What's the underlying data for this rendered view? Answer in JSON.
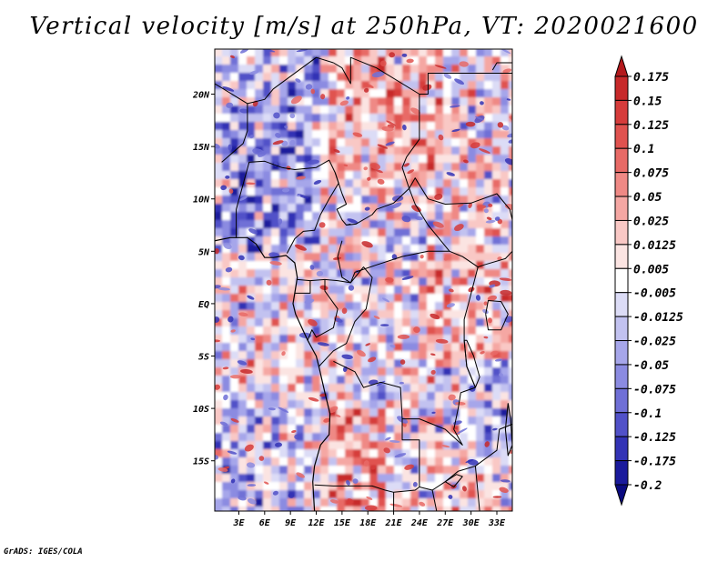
{
  "title": "Vertical velocity [m/s] at 250hPa, VT: 2020021600",
  "credit": "GrADS: IGES/COLA",
  "map": {
    "lat_labels": [
      "20N",
      "15N",
      "10N",
      "5N",
      "EQ",
      "5S",
      "10S",
      "15S"
    ],
    "lat_values": [
      20,
      15,
      10,
      5,
      0,
      -5,
      -10,
      -15
    ],
    "lon_labels": [
      "3E",
      "6E",
      "9E",
      "12E",
      "15E",
      "18E",
      "21E",
      "24E",
      "27E",
      "30E",
      "33E"
    ],
    "lon_values": [
      3,
      6,
      9,
      12,
      15,
      18,
      21,
      24,
      27,
      30,
      33
    ],
    "lon_range": [
      0.2,
      34.8
    ],
    "lat_range": [
      -19.8,
      24.3
    ]
  },
  "colorbar": {
    "labels": [
      "0.175",
      "0.15",
      "0.125",
      "0.1",
      "0.075",
      "0.05",
      "0.025",
      "0.0125",
      "0.005",
      "-0.005",
      "-0.0125",
      "-0.025",
      "-0.05",
      "-0.075",
      "-0.1",
      "-0.125",
      "-0.175",
      "-0.2"
    ],
    "colors": [
      "#b3191c",
      "#c7292a",
      "#d63c3b",
      "#e0524f",
      "#e86a66",
      "#ef8985",
      "#f5a7a3",
      "#f9c8c5",
      "#fbe4e2",
      "#ffffff",
      "#dcdcf6",
      "#c2c2f0",
      "#a6a6ea",
      "#8b8be1",
      "#6f6fd6",
      "#5151c8",
      "#3333b5",
      "#1a1a9c",
      "#0a0a80"
    ]
  }
}
